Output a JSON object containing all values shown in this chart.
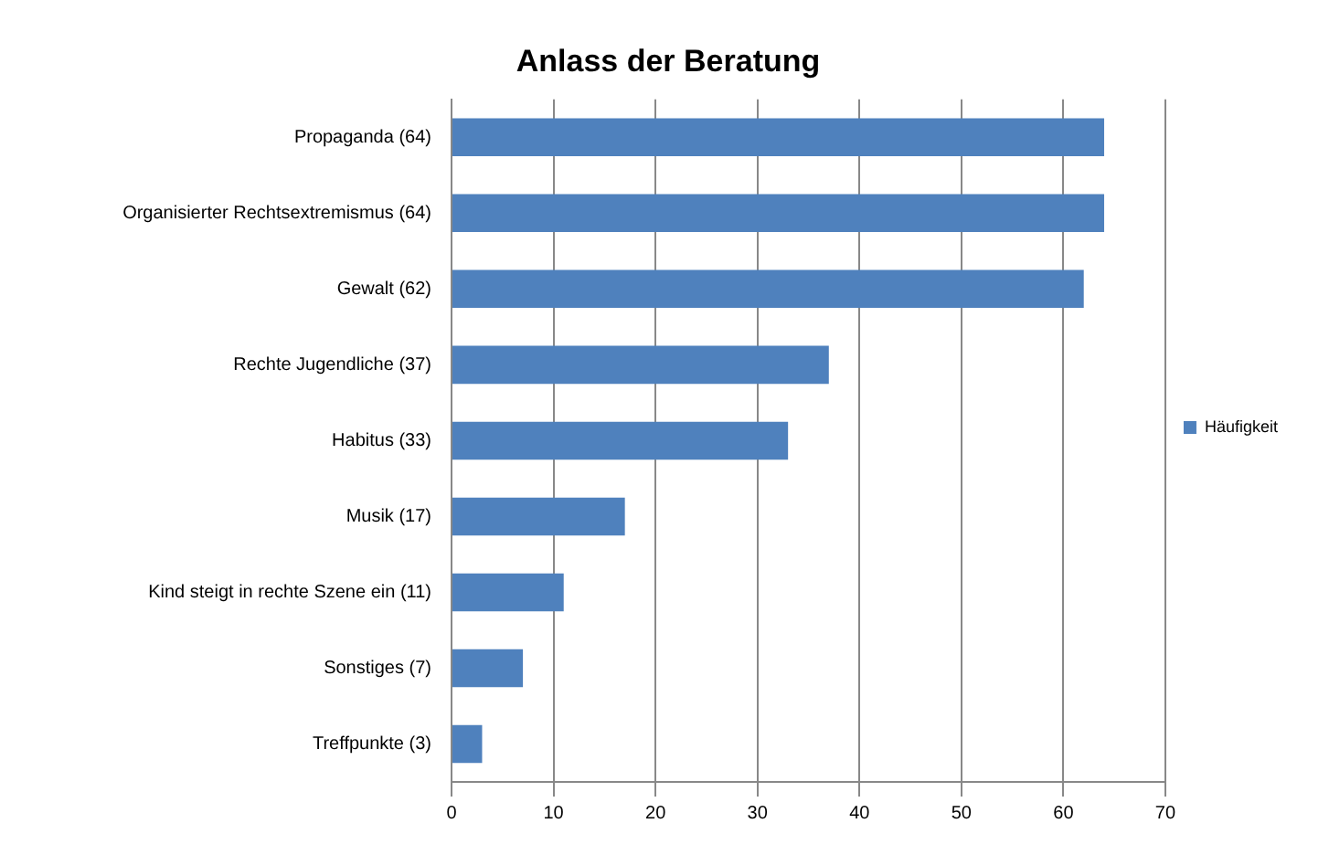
{
  "chart_data": {
    "type": "bar",
    "title": "Anlass der Beratung",
    "orientation": "horizontal",
    "categories": [
      "Propaganda (64)",
      "Organisierter Rechtsextremismus (64)",
      "Gewalt (62)",
      "Rechte Jugendliche (37)",
      "Habitus (33)",
      "Musik (17)",
      "Kind steigt in rechte Szene ein (11)",
      "Sonstiges (7)",
      "Treffpunkte (3)"
    ],
    "series": [
      {
        "name": "Häufigkeit",
        "color": "#4f81bd",
        "values": [
          64,
          64,
          62,
          37,
          33,
          17,
          11,
          7,
          3
        ]
      }
    ],
    "xlim": [
      0,
      70
    ],
    "xticks": [
      0,
      10,
      20,
      30,
      40,
      50,
      60,
      70
    ],
    "grid": "x",
    "legend": "right"
  }
}
